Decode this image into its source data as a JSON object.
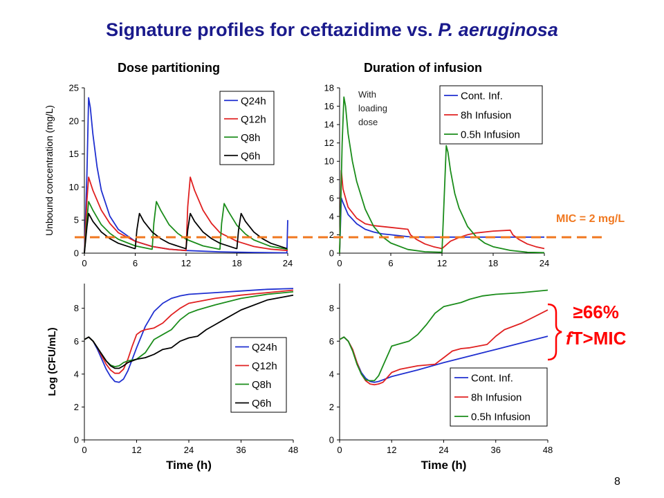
{
  "title": {
    "prefix": "Signature profiles for ceftazidime vs. ",
    "organism": "P. aeruginosa"
  },
  "column_titles": {
    "left": "Dose partitioning",
    "right": "Duration of infusion"
  },
  "mic_line": {
    "label": "MIC = 2 mg/L",
    "value": 2,
    "color": "#f07820"
  },
  "annotation": {
    "line1": "≥66%",
    "line2_italic": "f",
    "line2_rest": "T>MIC",
    "color": "#ff0000"
  },
  "slide_number": "8",
  "colors": {
    "blue": "#1f2fd0",
    "red": "#e02020",
    "green": "#1a8c1a",
    "black": "#000000",
    "title": "#1a1a8c"
  },
  "chart_data": [
    {
      "id": "pk-dose",
      "type": "line",
      "title": "",
      "xlabel": "",
      "ylabel": "Unbound concentration (mg/L)",
      "xlim": [
        0,
        24
      ],
      "ylim": [
        0,
        25
      ],
      "xticks": [
        0,
        6,
        12,
        18,
        24
      ],
      "yticks": [
        0,
        5,
        10,
        15,
        20,
        25
      ],
      "legend": "top-right",
      "series": [
        {
          "name": "Q24h",
          "color": "#1f2fd0",
          "x": [
            0,
            0.3,
            0.5,
            0.7,
            1,
            1.5,
            2,
            3,
            4,
            6,
            8,
            10,
            12,
            16,
            20,
            23.9,
            24,
            24
          ],
          "y": [
            0,
            12,
            23.5,
            22,
            18,
            13,
            9.5,
            5.6,
            3.6,
            1.8,
            1.0,
            0.6,
            0.4,
            0.2,
            0.1,
            0.05,
            5,
            5
          ]
        },
        {
          "name": "Q12h",
          "color": "#e02020",
          "x": [
            0,
            0.3,
            0.5,
            1,
            2,
            3,
            4,
            6,
            8,
            10,
            11.9,
            12,
            12.2,
            12.5,
            13,
            14,
            15,
            16,
            18,
            20,
            22,
            24
          ],
          "y": [
            0,
            8,
            11.5,
            9.5,
            6.5,
            4.5,
            3.1,
            1.8,
            1.0,
            0.6,
            0.4,
            0.4,
            7,
            11.5,
            9.5,
            6.5,
            4.5,
            3.1,
            1.8,
            1.0,
            0.6,
            0.4
          ]
        },
        {
          "name": "Q8h",
          "color": "#1a8c1a",
          "x": [
            0,
            0.3,
            0.5,
            1,
            2,
            3,
            4,
            6,
            7.9,
            8,
            8.2,
            8.5,
            9,
            10,
            11,
            12,
            14,
            15.9,
            16,
            16.2,
            16.5,
            17,
            18,
            19,
            20,
            22,
            24
          ],
          "y": [
            0,
            5,
            7.8,
            6.5,
            4.3,
            3.0,
            2.1,
            1.1,
            0.6,
            0.6,
            4.5,
            7.8,
            6.5,
            4.3,
            3.0,
            2.1,
            1.1,
            0.6,
            0.6,
            4.5,
            7.5,
            6.3,
            4.2,
            2.9,
            2.0,
            1.0,
            0.6
          ]
        },
        {
          "name": "Q6h",
          "color": "#000000",
          "x": [
            0,
            0.3,
            0.5,
            1,
            2,
            3,
            4,
            5.9,
            6,
            6.2,
            6.5,
            7,
            8,
            9,
            10,
            11.9,
            12,
            12.2,
            12.5,
            13,
            14,
            15,
            16,
            17.9,
            18,
            18.2,
            18.5,
            19,
            20,
            21,
            22,
            23.9
          ],
          "y": [
            0,
            4,
            6.0,
            4.8,
            3.2,
            2.2,
            1.5,
            0.7,
            0.7,
            3.5,
            6.0,
            4.8,
            3.2,
            2.2,
            1.5,
            0.7,
            0.7,
            3.5,
            6.0,
            4.8,
            3.2,
            2.2,
            1.5,
            0.7,
            0.7,
            3.5,
            6.0,
            4.8,
            3.2,
            2.2,
            1.5,
            0.7
          ]
        }
      ]
    },
    {
      "id": "pk-infusion",
      "type": "line",
      "title": "",
      "xlabel": "",
      "ylabel": "",
      "xlim": [
        0,
        24
      ],
      "ylim": [
        0,
        18
      ],
      "xticks": [
        0,
        6,
        12,
        18,
        24
      ],
      "yticks": [
        0,
        2,
        4,
        6,
        8,
        10,
        12,
        14,
        16,
        18
      ],
      "legend": "top-right",
      "annotation": "With loading dose",
      "series": [
        {
          "name": "Cont. Inf.",
          "color": "#1f2fd0",
          "x": [
            0,
            0.2,
            0.4,
            1,
            2,
            3,
            4,
            5,
            6,
            7,
            8,
            10,
            12,
            16,
            20,
            24
          ],
          "y": [
            0,
            6,
            5.5,
            4.2,
            3.2,
            2.6,
            2.3,
            2.1,
            2.0,
            1.9,
            1.8,
            1.75,
            1.75,
            1.75,
            1.75,
            1.75
          ]
        },
        {
          "name": "8h Infusion",
          "color": "#e02020",
          "x": [
            0,
            0.2,
            0.4,
            1,
            2,
            3,
            4,
            6,
            8,
            8.3,
            9,
            10,
            11,
            11.99,
            12,
            12.5,
            13,
            14,
            15,
            16,
            18,
            20,
            20.3,
            21,
            22,
            23,
            24
          ],
          "y": [
            0,
            9,
            7,
            5,
            3.8,
            3.2,
            3.0,
            2.8,
            2.6,
            2.0,
            1.5,
            1.0,
            0.7,
            0.5,
            0.5,
            0.9,
            1.3,
            1.7,
            2.0,
            2.2,
            2.4,
            2.5,
            2.0,
            1.5,
            1.0,
            0.7,
            0.5
          ]
        },
        {
          "name": "0.5h Infusion",
          "color": "#1a8c1a",
          "x": [
            0,
            0.3,
            0.5,
            0.7,
            1,
            1.5,
            2,
            3,
            4,
            5,
            6,
            8,
            10,
            12,
            12.3,
            12.5,
            12.7,
            13,
            13.5,
            14,
            15,
            16,
            17,
            18,
            20,
            22,
            24
          ],
          "y": [
            0,
            12,
            17,
            16,
            13,
            10,
            7.8,
            4.8,
            2.9,
            1.8,
            1.1,
            0.4,
            0.15,
            0.1,
            7,
            11.7,
            11,
            9,
            6.5,
            4.9,
            2.9,
            1.8,
            1.1,
            0.7,
            0.3,
            0.1,
            0.05
          ]
        }
      ]
    },
    {
      "id": "pd-dose",
      "type": "line",
      "title": "",
      "xlabel": "Time (h)",
      "ylabel": "Log (CFU/mL)",
      "xlim": [
        0,
        48
      ],
      "ylim": [
        0,
        9.5
      ],
      "xticks": [
        0,
        12,
        24,
        36,
        48
      ],
      "yticks": [
        0,
        2,
        4,
        6,
        8
      ],
      "legend": "bottom-right",
      "series": [
        {
          "name": "Q24h",
          "color": "#1f2fd0",
          "x": [
            0,
            1,
            2,
            3,
            4,
            5,
            6,
            7,
            8,
            9,
            10,
            12,
            14,
            16,
            18,
            20,
            22,
            24,
            30,
            36,
            42,
            48
          ],
          "y": [
            6.1,
            6.25,
            6.0,
            5.5,
            4.9,
            4.3,
            3.85,
            3.55,
            3.5,
            3.7,
            4.2,
            5.6,
            6.9,
            7.8,
            8.3,
            8.6,
            8.75,
            8.85,
            8.95,
            9.05,
            9.15,
            9.2
          ]
        },
        {
          "name": "Q12h",
          "color": "#e02020",
          "x": [
            0,
            1,
            2,
            3,
            4,
            5,
            6,
            7,
            8,
            9,
            10,
            11,
            12,
            13,
            14,
            16,
            18,
            20,
            22,
            24,
            30,
            36,
            42,
            48
          ],
          "y": [
            6.1,
            6.25,
            6.0,
            5.6,
            5.1,
            4.6,
            4.25,
            4.05,
            4.05,
            4.3,
            4.9,
            5.7,
            6.4,
            6.6,
            6.7,
            6.8,
            7.1,
            7.6,
            8.0,
            8.3,
            8.6,
            8.8,
            8.95,
            9.1
          ]
        },
        {
          "name": "Q8h",
          "color": "#1a8c1a",
          "x": [
            0,
            1,
            2,
            3,
            4,
            5,
            6,
            7,
            8,
            9,
            10,
            12,
            14,
            16,
            18,
            20,
            22,
            24,
            26,
            30,
            36,
            42,
            48
          ],
          "y": [
            6.1,
            6.25,
            6.0,
            5.6,
            5.2,
            4.8,
            4.55,
            4.45,
            4.5,
            4.7,
            4.8,
            4.9,
            5.3,
            6.1,
            6.4,
            6.7,
            7.3,
            7.7,
            7.9,
            8.2,
            8.6,
            8.85,
            9.0
          ]
        },
        {
          "name": "Q6h",
          "color": "#000000",
          "x": [
            0,
            1,
            2,
            3,
            4,
            5,
            6,
            7,
            8,
            9,
            10,
            12,
            14,
            16,
            18,
            20,
            22,
            24,
            26,
            28,
            30,
            32,
            36,
            42,
            48
          ],
          "y": [
            6.1,
            6.25,
            6.0,
            5.6,
            5.2,
            4.8,
            4.5,
            4.35,
            4.35,
            4.5,
            4.7,
            4.9,
            5.0,
            5.2,
            5.5,
            5.6,
            6.0,
            6.2,
            6.3,
            6.7,
            7.0,
            7.3,
            7.9,
            8.5,
            8.8
          ]
        }
      ]
    },
    {
      "id": "pd-infusion",
      "type": "line",
      "title": "",
      "xlabel": "Time (h)",
      "ylabel": "",
      "xlim": [
        0,
        48
      ],
      "ylim": [
        0,
        9.5
      ],
      "xticks": [
        0,
        12,
        24,
        36,
        48
      ],
      "yticks": [
        0,
        2,
        4,
        6,
        8
      ],
      "legend": "bottom-right",
      "series": [
        {
          "name": "Cont. Inf.",
          "color": "#1f2fd0",
          "x": [
            0,
            1,
            2,
            3,
            4,
            5,
            6,
            7,
            8,
            9,
            10,
            12,
            18,
            24,
            30,
            36,
            42,
            48
          ],
          "y": [
            6.1,
            6.25,
            6.0,
            5.5,
            4.7,
            4.1,
            3.75,
            3.55,
            3.5,
            3.55,
            3.65,
            3.85,
            4.25,
            4.7,
            5.1,
            5.5,
            5.9,
            6.3
          ]
        },
        {
          "name": "8h Infusion",
          "color": "#e02020",
          "x": [
            0,
            1,
            2,
            3,
            4,
            5,
            6,
            7,
            8,
            9,
            10,
            12,
            14,
            18,
            22,
            24,
            26,
            28,
            30,
            34,
            36,
            38,
            42,
            48
          ],
          "y": [
            6.1,
            6.25,
            6.0,
            5.5,
            4.7,
            4.0,
            3.6,
            3.4,
            3.35,
            3.4,
            3.5,
            4.1,
            4.3,
            4.5,
            4.6,
            5.0,
            5.4,
            5.55,
            5.6,
            5.8,
            6.3,
            6.7,
            7.1,
            7.9
          ]
        },
        {
          "name": "0.5h Infusion",
          "color": "#1a8c1a",
          "x": [
            0,
            1,
            2,
            3,
            4,
            5,
            6,
            7,
            8,
            9,
            10,
            12,
            14,
            16,
            18,
            20,
            22,
            24,
            28,
            30,
            33,
            36,
            42,
            48
          ],
          "y": [
            6.1,
            6.25,
            6.0,
            5.4,
            4.6,
            4.0,
            3.65,
            3.6,
            3.6,
            3.9,
            4.5,
            5.7,
            5.85,
            6.0,
            6.4,
            7.0,
            7.7,
            8.1,
            8.35,
            8.55,
            8.75,
            8.85,
            8.95,
            9.1
          ]
        }
      ]
    }
  ]
}
